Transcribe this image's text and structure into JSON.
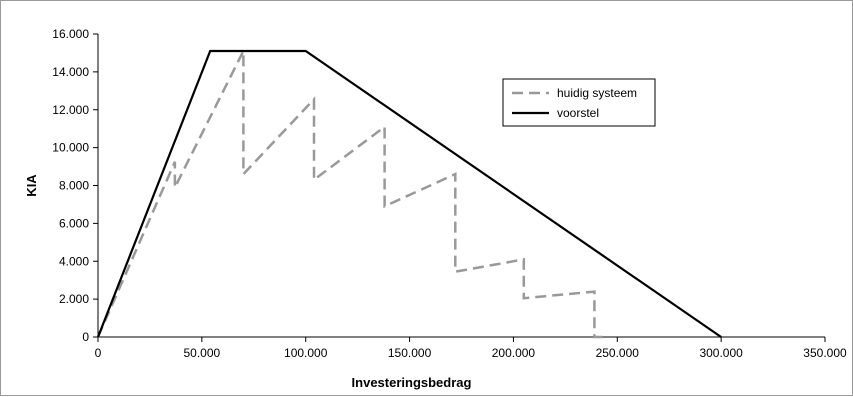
{
  "chart_data": {
    "type": "line",
    "title": "",
    "xlabel": "Investeringsbedrag",
    "ylabel": "KIA",
    "xlim": [
      0,
      350000
    ],
    "ylim": [
      0,
      16000
    ],
    "x_ticks": [
      0,
      50000,
      100000,
      150000,
      200000,
      250000,
      300000,
      350000
    ],
    "x_tick_labels": [
      "0",
      "50.000",
      "100.000",
      "150.000",
      "200.000",
      "250.000",
      "300.000",
      "350.000"
    ],
    "y_ticks": [
      0,
      2000,
      4000,
      6000,
      8000,
      10000,
      12000,
      14000,
      16000
    ],
    "y_tick_labels": [
      "0",
      "2.000",
      "4.000",
      "6.000",
      "8.000",
      "10.000",
      "12.000",
      "14.000",
      "16.000"
    ],
    "grid": false,
    "legend_position": "top-right",
    "series": [
      {
        "name": "huidig systeem",
        "style": "dashed",
        "color": "#999999",
        "points": [
          [
            0,
            0
          ],
          [
            37000,
            9250
          ],
          [
            37000,
            7900
          ],
          [
            70000,
            15100
          ],
          [
            70000,
            8600
          ],
          [
            104000,
            12550
          ],
          [
            104000,
            8300
          ],
          [
            138000,
            11100
          ],
          [
            138000,
            6900
          ],
          [
            172000,
            8600
          ],
          [
            172000,
            3450
          ],
          [
            205000,
            4100
          ],
          [
            205000,
            2050
          ],
          [
            239000,
            2400
          ],
          [
            239000,
            0
          ],
          [
            245000,
            0
          ]
        ]
      },
      {
        "name": "voorstel",
        "style": "solid",
        "color": "#000000",
        "points": [
          [
            0,
            0
          ],
          [
            54000,
            15100
          ],
          [
            100000,
            15100
          ],
          [
            300000,
            0
          ]
        ]
      }
    ]
  }
}
